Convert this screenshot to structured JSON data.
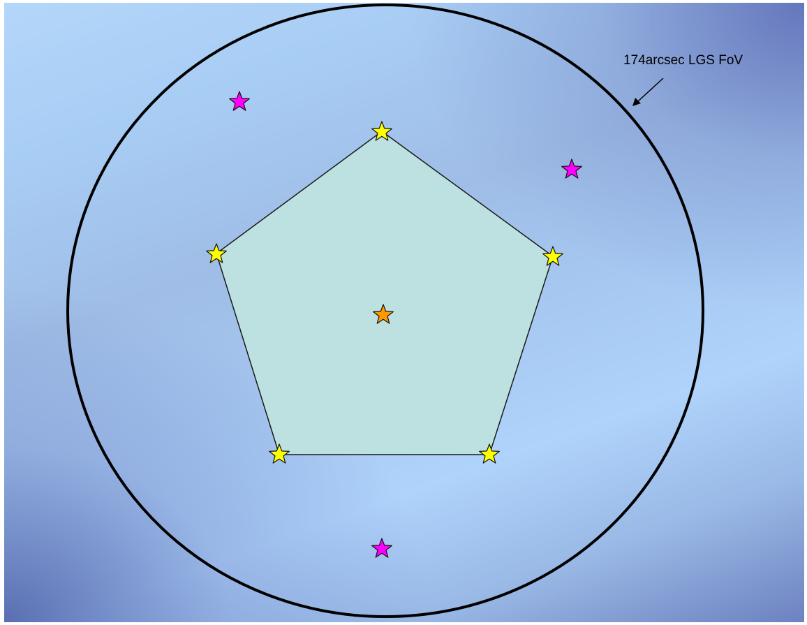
{
  "fov_label": "174arcsec LGS FoV",
  "colors": {
    "circle_stroke": "#000000",
    "pentagon_fill": "#bde0e0",
    "pentagon_stroke": "#1a1a1a",
    "star_yellow": "#ffff00",
    "star_orange": "#ff9900",
    "star_magenta": "#ff00ff",
    "star_stroke": "#111111"
  },
  "stars": {
    "lgs_count": 5,
    "center_count": 1,
    "ngs_count": 3
  }
}
